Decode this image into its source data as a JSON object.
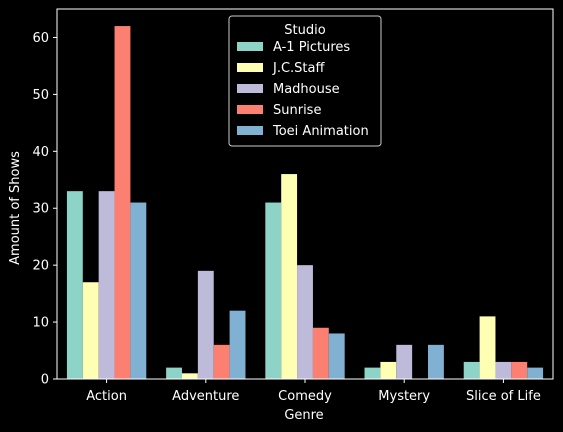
{
  "chart_data": {
    "type": "bar",
    "title": "",
    "xlabel": "Genre",
    "ylabel": "Amount of Shows",
    "categories": [
      "Action",
      "Adventure",
      "Comedy",
      "Mystery",
      "Slice of Life"
    ],
    "ylim": [
      0,
      65
    ],
    "yticks": [
      0,
      10,
      20,
      30,
      40,
      50,
      60
    ],
    "grid": false,
    "legend": {
      "title": "Studio",
      "placement": "top-center"
    },
    "series": [
      {
        "name": "A-1 Pictures",
        "color": "#8dd3c7",
        "values": [
          33,
          2,
          31,
          2,
          3
        ]
      },
      {
        "name": "J.C.Staff",
        "color": "#ffffb3",
        "values": [
          17,
          1,
          36,
          3,
          11
        ]
      },
      {
        "name": "Madhouse",
        "color": "#bebada",
        "values": [
          33,
          19,
          20,
          6,
          3
        ]
      },
      {
        "name": "Sunrise",
        "color": "#fb8072",
        "values": [
          62,
          6,
          9,
          0,
          3
        ]
      },
      {
        "name": "Toei Animation",
        "color": "#80b1d3",
        "values": [
          31,
          12,
          8,
          6,
          2
        ]
      }
    ]
  }
}
